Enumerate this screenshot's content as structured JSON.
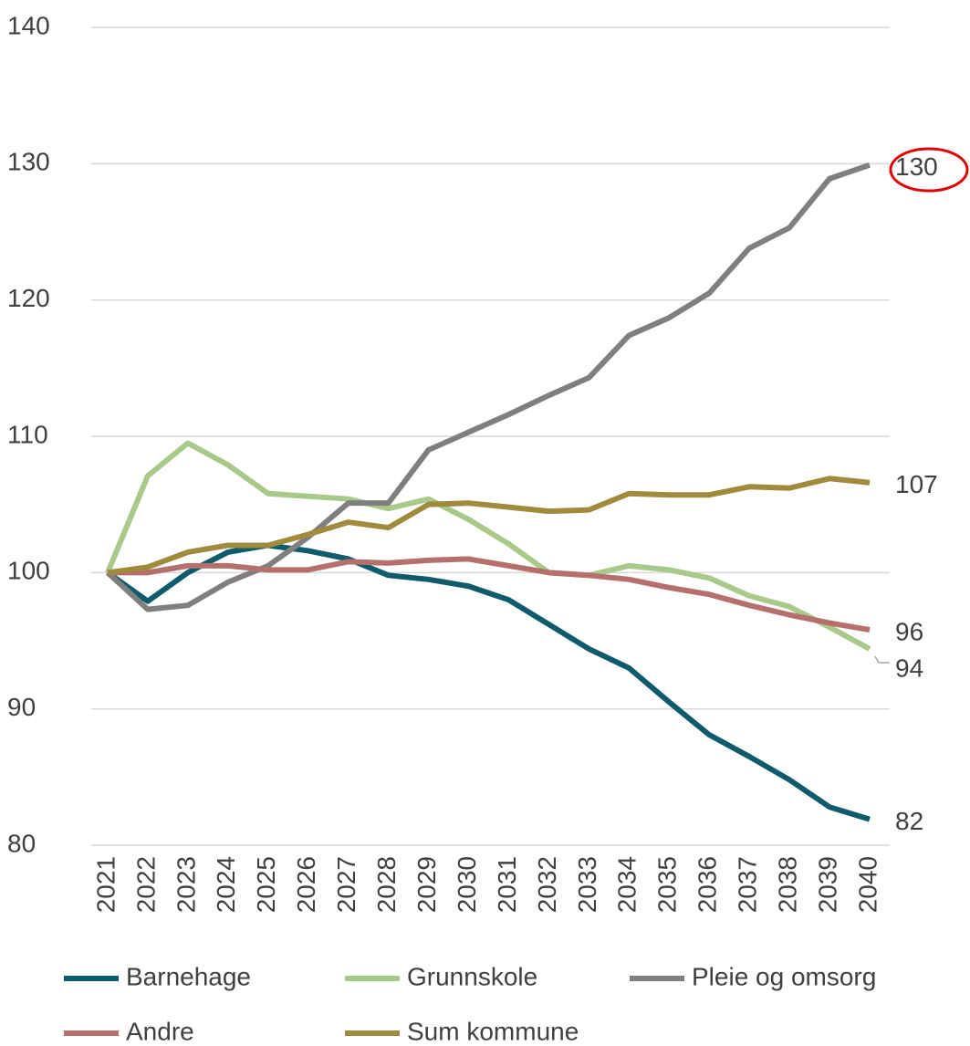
{
  "chart_data": {
    "type": "line",
    "categories": [
      "2021",
      "2022",
      "2023",
      "2024",
      "2025",
      "2026",
      "2027",
      "2028",
      "2029",
      "2030",
      "2031",
      "2032",
      "2033",
      "2034",
      "2035",
      "2036",
      "2037",
      "2038",
      "2039",
      "2040"
    ],
    "ylim": [
      80,
      140
    ],
    "yticks": [
      80,
      90,
      100,
      110,
      120,
      130,
      140
    ],
    "grid": true,
    "series": [
      {
        "name": "Barnehage",
        "color": "#0f5b6c",
        "values": [
          100,
          97.9,
          100,
          101.5,
          102,
          101.6,
          101.0,
          99.8,
          99.5,
          99.0,
          98.0,
          96.2,
          94.4,
          93.0,
          90.5,
          88.1,
          86.5,
          84.8,
          82.8,
          81.9
        ],
        "value_labels": [
          null,
          null,
          null,
          null,
          null,
          null,
          null,
          null,
          null,
          null,
          null,
          null,
          null,
          null,
          null,
          null,
          null,
          null,
          null,
          "82"
        ]
      },
      {
        "name": "Grunnskole",
        "color": "#a9c98a",
        "values": [
          100,
          107.1,
          109.5,
          107.9,
          105.8,
          105.6,
          105.4,
          104.7,
          105.4,
          103.9,
          102.1,
          100.0,
          99.8,
          100.5,
          100.2,
          99.6,
          98.3,
          97.5,
          96.0,
          94.4
        ],
        "value_labels": [
          null,
          null,
          null,
          null,
          null,
          null,
          null,
          null,
          null,
          null,
          null,
          null,
          null,
          null,
          null,
          null,
          null,
          null,
          null,
          "94"
        ]
      },
      {
        "name": "Pleie og omsorg",
        "color": "#7f7f80",
        "values": [
          100,
          97.3,
          97.6,
          99.3,
          100.5,
          102.6,
          105.1,
          105.1,
          109.0,
          110.3,
          111.6,
          113.0,
          114.3,
          117.4,
          118.7,
          120.5,
          123.8,
          125.3,
          128.9,
          129.9
        ],
        "value_labels": [
          null,
          null,
          null,
          null,
          null,
          null,
          null,
          null,
          null,
          null,
          null,
          null,
          null,
          null,
          null,
          null,
          null,
          null,
          null,
          "130"
        ]
      },
      {
        "name": "Andre",
        "color": "#b5706e",
        "values": [
          100,
          100.0,
          100.5,
          100.5,
          100.2,
          100.2,
          100.8,
          100.7,
          100.9,
          101.0,
          100.5,
          100.0,
          99.8,
          99.5,
          98.9,
          98.4,
          97.6,
          96.9,
          96.3,
          95.8
        ],
        "value_labels": [
          null,
          null,
          null,
          null,
          null,
          null,
          null,
          null,
          null,
          null,
          null,
          null,
          null,
          null,
          null,
          null,
          null,
          null,
          null,
          "96"
        ]
      },
      {
        "name": "Sum kommune",
        "color": "#a08a3c",
        "values": [
          100,
          100.4,
          101.5,
          102.0,
          102.0,
          102.8,
          103.7,
          103.3,
          105.0,
          105.1,
          104.8,
          104.5,
          104.6,
          105.8,
          105.7,
          105.7,
          106.3,
          106.2,
          106.9,
          106.6
        ],
        "value_labels": [
          null,
          null,
          null,
          null,
          null,
          null,
          null,
          null,
          null,
          null,
          null,
          null,
          null,
          null,
          null,
          null,
          null,
          null,
          null,
          "107"
        ]
      }
    ]
  }
}
